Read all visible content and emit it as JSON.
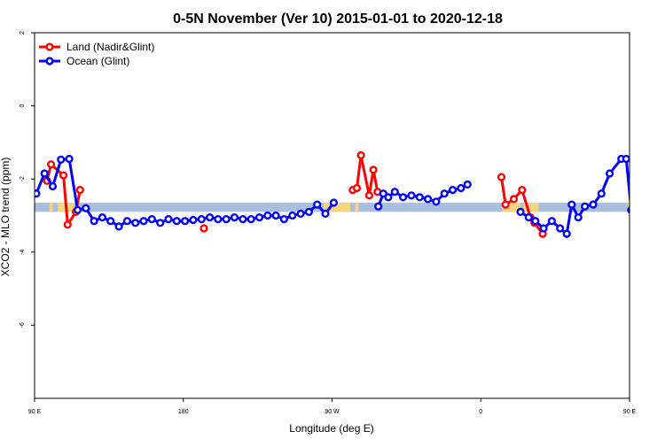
{
  "chart_data": {
    "type": "line",
    "title": "0-5N November (Ver 10)   2015-01-01 to 2020-12-18",
    "xlabel": "Longitude (deg E)",
    "ylabel": "XCO2 - MLO trend (ppm)",
    "xlim": [
      90,
      450
    ],
    "ylim": [
      -8,
      2
    ],
    "x_ticks": [
      {
        "value": 90,
        "label": "90 E"
      },
      {
        "value": 180,
        "label": "180"
      },
      {
        "value": 270,
        "label": "90 W"
      },
      {
        "value": 360,
        "label": "0"
      },
      {
        "value": 450,
        "label": "90 E"
      },
      {
        "value": 540,
        "label": "180"
      }
    ],
    "y_ticks": [
      {
        "value": 2,
        "label": "2"
      },
      {
        "value": 0,
        "label": "0"
      },
      {
        "value": -2,
        "label": "-2"
      },
      {
        "value": -4,
        "label": "-4"
      },
      {
        "value": -6,
        "label": "-6"
      }
    ],
    "band": {
      "y_low": -2.65,
      "y_high": -2.9,
      "base_color": "#a9bfdf",
      "land_color": "#f8d47f"
    },
    "land_band_segments": [
      [
        99,
        101
      ],
      [
        104,
        109
      ],
      [
        110,
        114
      ],
      [
        265,
        281
      ],
      [
        284,
        286
      ],
      [
        373,
        384
      ],
      [
        386,
        395
      ],
      [
        449,
        453
      ],
      [
        456,
        458
      ],
      [
        462,
        477
      ]
    ],
    "series": [
      {
        "name": "Land (Nadir&Glint)",
        "color": "#ff0000",
        "segments": [
          [
            [
              97.5,
              -2.05
            ],
            [
              100,
              -1.6
            ],
            [
              107.5,
              -1.9
            ],
            [
              110,
              -3.25
            ],
            [
              115,
              -2.9
            ],
            [
              117.5,
              -2.3
            ]
          ],
          [
            [
              192.5,
              -3.35
            ]
          ],
          [
            [
              282.5,
              -2.3
            ],
            [
              285,
              -2.25
            ],
            [
              287.5,
              -1.35
            ],
            [
              292.5,
              -2.45
            ],
            [
              295,
              -1.75
            ],
            [
              297.5,
              -2.35
            ]
          ],
          [
            [
              372.5,
              -1.95
            ],
            [
              375,
              -2.7
            ],
            [
              380,
              -2.55
            ],
            [
              385,
              -2.3
            ],
            [
              390,
              -3.05
            ],
            [
              392.5,
              -3.2
            ],
            [
              397.5,
              -3.5
            ]
          ],
          [
            [
              463,
              -1.85
            ],
            [
              465.5,
              -2.0
            ],
            [
              468,
              -1.6
            ],
            [
              478,
              -1.9
            ],
            [
              480.5,
              -3.25
            ],
            [
              485.5,
              -2.9
            ],
            [
              488,
              -2.3
            ]
          ]
        ]
      },
      {
        "name": "Ocean (Glint)",
        "color": "#0000ff",
        "segments": [
          [
            [
              91,
              -2.4
            ],
            [
              96,
              -1.85
            ],
            [
              101,
              -2.2
            ],
            [
              106,
              -1.47
            ],
            [
              111,
              -1.45
            ],
            [
              116,
              -2.85
            ],
            [
              121,
              -2.8
            ],
            [
              126,
              -3.15
            ],
            [
              131,
              -3.05
            ],
            [
              136,
              -3.15
            ],
            [
              141,
              -3.3
            ],
            [
              146,
              -3.15
            ],
            [
              151,
              -3.2
            ],
            [
              156,
              -3.15
            ],
            [
              161,
              -3.1
            ],
            [
              166,
              -3.2
            ],
            [
              171,
              -3.1
            ],
            [
              176,
              -3.15
            ],
            [
              181,
              -3.15
            ],
            [
              186,
              -3.12
            ],
            [
              191,
              -3.1
            ],
            [
              196,
              -3.05
            ],
            [
              201,
              -3.1
            ],
            [
              206,
              -3.1
            ],
            [
              211,
              -3.05
            ],
            [
              216,
              -3.1
            ],
            [
              221,
              -3.1
            ],
            [
              226,
              -3.05
            ],
            [
              231,
              -3.0
            ],
            [
              236,
              -3.0
            ],
            [
              241,
              -3.1
            ],
            [
              246,
              -3.0
            ],
            [
              251,
              -2.95
            ],
            [
              256,
              -2.9
            ],
            [
              261,
              -2.7
            ],
            [
              266,
              -2.95
            ],
            [
              271,
              -2.65
            ]
          ],
          [
            [
              298,
              -2.75
            ],
            [
              301,
              -2.4
            ],
            [
              304,
              -2.5
            ],
            [
              308,
              -2.35
            ],
            [
              313,
              -2.5
            ],
            [
              318,
              -2.45
            ],
            [
              323,
              -2.5
            ],
            [
              328,
              -2.55
            ],
            [
              333,
              -2.62
            ],
            [
              338,
              -2.4
            ],
            [
              343,
              -2.3
            ],
            [
              348,
              -2.25
            ],
            [
              352,
              -2.15
            ]
          ],
          [
            [
              384,
              -2.9
            ],
            [
              389,
              -3.05
            ],
            [
              393,
              -3.15
            ],
            [
              398,
              -3.35
            ],
            [
              403,
              -3.15
            ],
            [
              408,
              -3.35
            ],
            [
              412,
              -3.5
            ],
            [
              415,
              -2.7
            ],
            [
              419,
              -3.05
            ],
            [
              423,
              -2.75
            ],
            [
              428,
              -2.7
            ],
            [
              433,
              -2.4
            ],
            [
              438,
              -1.85
            ],
            [
              445,
              -1.45
            ],
            [
              448,
              -1.45
            ],
            [
              451,
              -2.85
            ],
            [
              454,
              -2.8
            ],
            [
              457,
              -2.75
            ],
            [
              460,
              -3.15
            ],
            [
              465,
              -3.05
            ],
            [
              470,
              -3.15
            ],
            [
              475,
              -3.25
            ],
            [
              480,
              -3.15
            ],
            [
              485,
              -3.2
            ],
            [
              490,
              -3.15
            ],
            [
              495,
              -3.1
            ],
            [
              500,
              -3.25
            ]
          ]
        ]
      }
    ],
    "legend": {
      "position": "top-left"
    }
  }
}
